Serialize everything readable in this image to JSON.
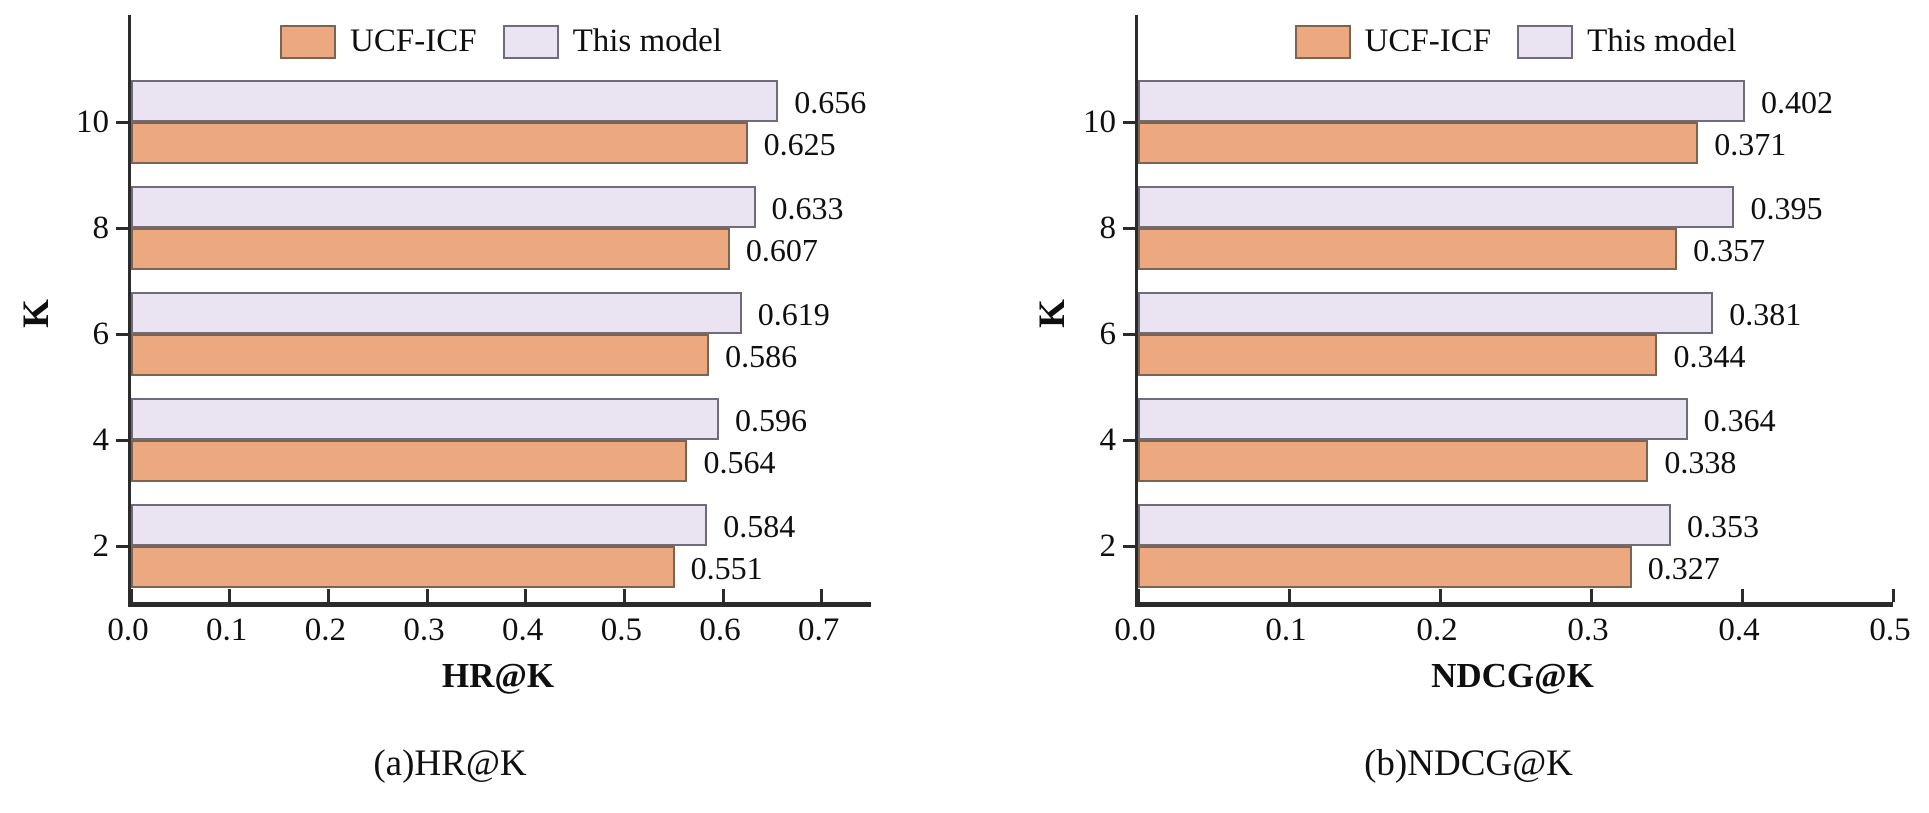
{
  "colors": {
    "ucf": "#ECA87E",
    "ucf_border": "#7D6452",
    "model": "#E9E3F2",
    "model_border": "#6F6B78",
    "axis": "#2B2B2B",
    "text": "#0F0F0F",
    "background": "#FFFFFF"
  },
  "legend": {
    "items": [
      {
        "label": "UCF-ICF",
        "series": "ucf"
      },
      {
        "label": "This model",
        "series": "model"
      }
    ],
    "position": "top-center"
  },
  "chart_data": [
    {
      "type": "bar",
      "orientation": "horizontal",
      "caption": "(a)HR@K",
      "xlabel": "HR@K",
      "ylabel": "K",
      "categories": [
        2,
        4,
        6,
        8,
        10
      ],
      "series": [
        {
          "name": "UCF-ICF",
          "values": [
            0.551,
            0.564,
            0.586,
            0.607,
            0.625
          ]
        },
        {
          "name": "This model",
          "values": [
            0.584,
            0.596,
            0.619,
            0.633,
            0.656
          ]
        }
      ],
      "xlim": [
        0,
        0.75
      ],
      "xticks": [
        0.0,
        0.1,
        0.2,
        0.3,
        0.4,
        0.5,
        0.6,
        0.7
      ],
      "xtick_labels": [
        "0.0",
        "0.1",
        "0.2",
        "0.3",
        "0.4",
        "0.5",
        "0.6",
        "0.7"
      ],
      "grid": false,
      "legend_position": "top",
      "value_labels": true
    },
    {
      "type": "bar",
      "orientation": "horizontal",
      "caption": "(b)NDCG@K",
      "xlabel": "NDCG@K",
      "ylabel": "K",
      "categories": [
        2,
        4,
        6,
        8,
        10
      ],
      "series": [
        {
          "name": "UCF-ICF",
          "values": [
            0.327,
            0.338,
            0.344,
            0.357,
            0.371
          ]
        },
        {
          "name": "This model",
          "values": [
            0.353,
            0.364,
            0.381,
            0.395,
            0.402
          ]
        }
      ],
      "xlim": [
        0,
        0.5
      ],
      "xticks": [
        0.0,
        0.1,
        0.2,
        0.3,
        0.4,
        0.5
      ],
      "xtick_labels": [
        "0.0",
        "0.1",
        "0.2",
        "0.3",
        "0.4",
        "0.5"
      ],
      "grid": false,
      "legend_position": "top",
      "value_labels": true
    }
  ]
}
